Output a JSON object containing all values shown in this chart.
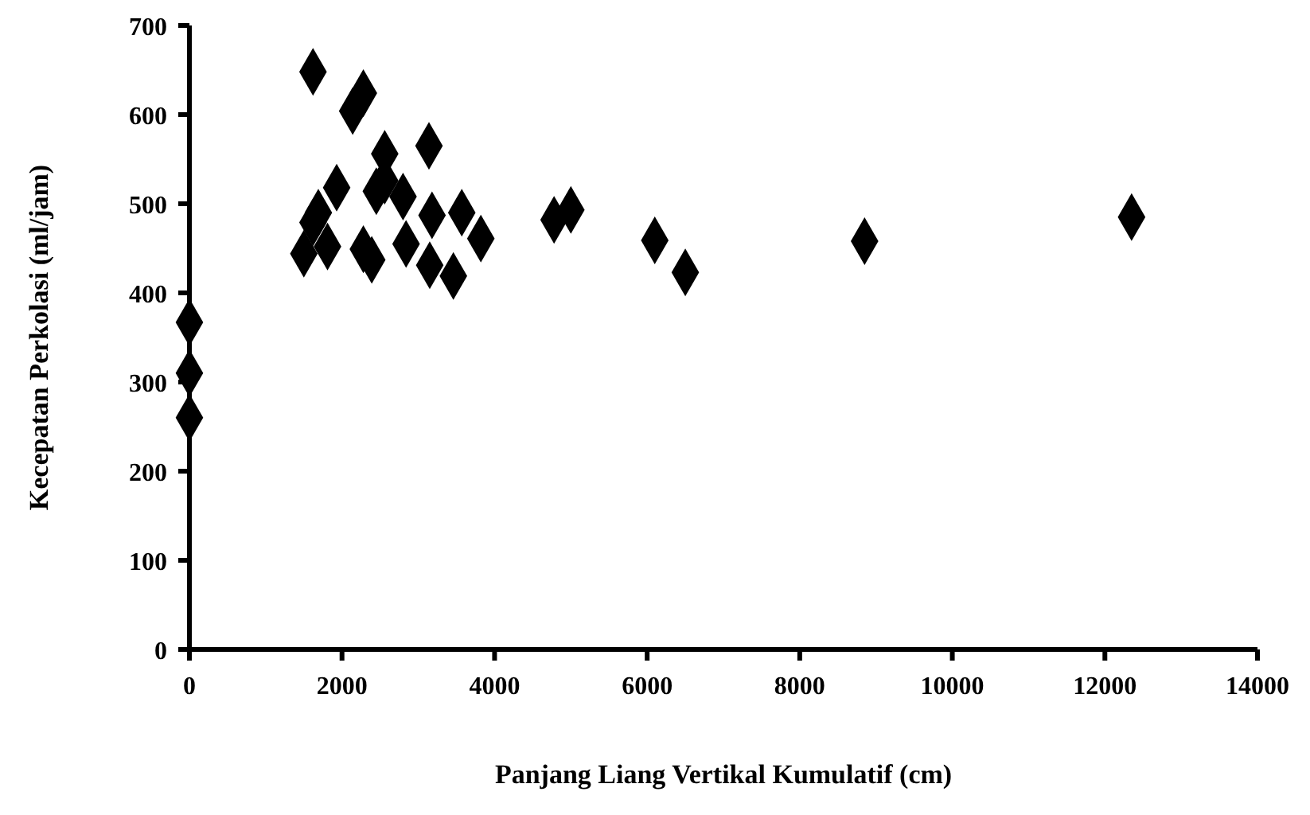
{
  "chart_data": {
    "type": "scatter",
    "xlabel": "Panjang Liang Vertikal Kumulatif (cm)",
    "ylabel": "Kecepatan Perkolasi (ml/jam)",
    "marker": "diamond",
    "xlim": [
      0,
      14000
    ],
    "xticks": [
      0,
      2000,
      4000,
      6000,
      8000,
      10000,
      12000,
      14000
    ],
    "ylim": [
      0,
      700
    ],
    "yticks": [
      0,
      100,
      200,
      300,
      400,
      500,
      600,
      700
    ],
    "series": [
      {
        "color": "#000000",
        "x": [
          1620,
          2280,
          2140,
          2560,
          3140,
          1930,
          2560,
          2450,
          2800,
          1690,
          1620,
          3180,
          3570,
          3820,
          4780,
          5000,
          6100,
          6500,
          8850,
          12350,
          1500,
          1810,
          2280,
          2390,
          2840,
          3150,
          3460,
          0,
          0,
          0
        ],
        "values": [
          648,
          624,
          604,
          556,
          565,
          518,
          526,
          514,
          508,
          490,
          479,
          487,
          490,
          461,
          482,
          493,
          459,
          423,
          458,
          485,
          444,
          452,
          449,
          437,
          455,
          431,
          419,
          367,
          310,
          260
        ]
      }
    ]
  }
}
